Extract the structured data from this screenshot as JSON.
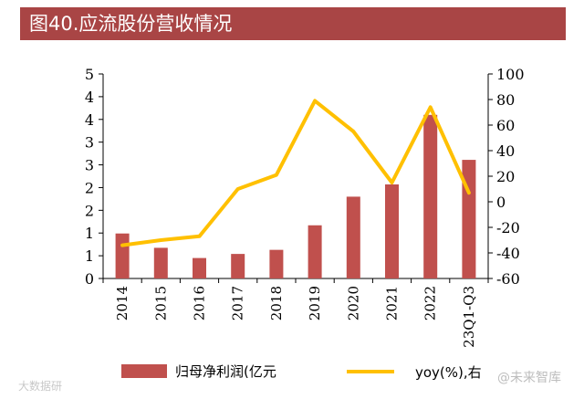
{
  "title": "图40.应流股份营收情况",
  "chart_data": {
    "type": "bar",
    "categories": [
      "2014",
      "2015",
      "2016",
      "2017",
      "2018",
      "2019",
      "2020",
      "2021",
      "2022",
      "23Q1-Q3"
    ],
    "series": [
      {
        "name": "归母净利润(亿元",
        "type": "bar",
        "axis": "left",
        "values": [
          1.1,
          0.75,
          0.5,
          0.6,
          0.7,
          1.3,
          2.0,
          2.3,
          4.0,
          2.9
        ]
      },
      {
        "name": "yoy(%),右",
        "type": "line",
        "axis": "right",
        "values": [
          -34,
          -30,
          -27,
          10,
          21,
          79,
          55,
          15,
          74,
          7
        ]
      }
    ],
    "y_left": {
      "ylim": [
        0,
        5
      ],
      "ticks": [
        "0",
        "1",
        "1",
        "2",
        "2",
        "3",
        "3",
        "4",
        "4",
        "5"
      ]
    },
    "y_right": {
      "ylim": [
        -60,
        100
      ],
      "ticks": [
        -60,
        -40,
        -20,
        0,
        20,
        40,
        60,
        80,
        100
      ]
    },
    "colors": {
      "bar": "#c0504d",
      "line": "#ffc000",
      "title_bg": "#a94545"
    },
    "legend": {
      "position": "bottom"
    }
  },
  "watermarks": {
    "left": "大数据研",
    "right": "@未来智库"
  }
}
